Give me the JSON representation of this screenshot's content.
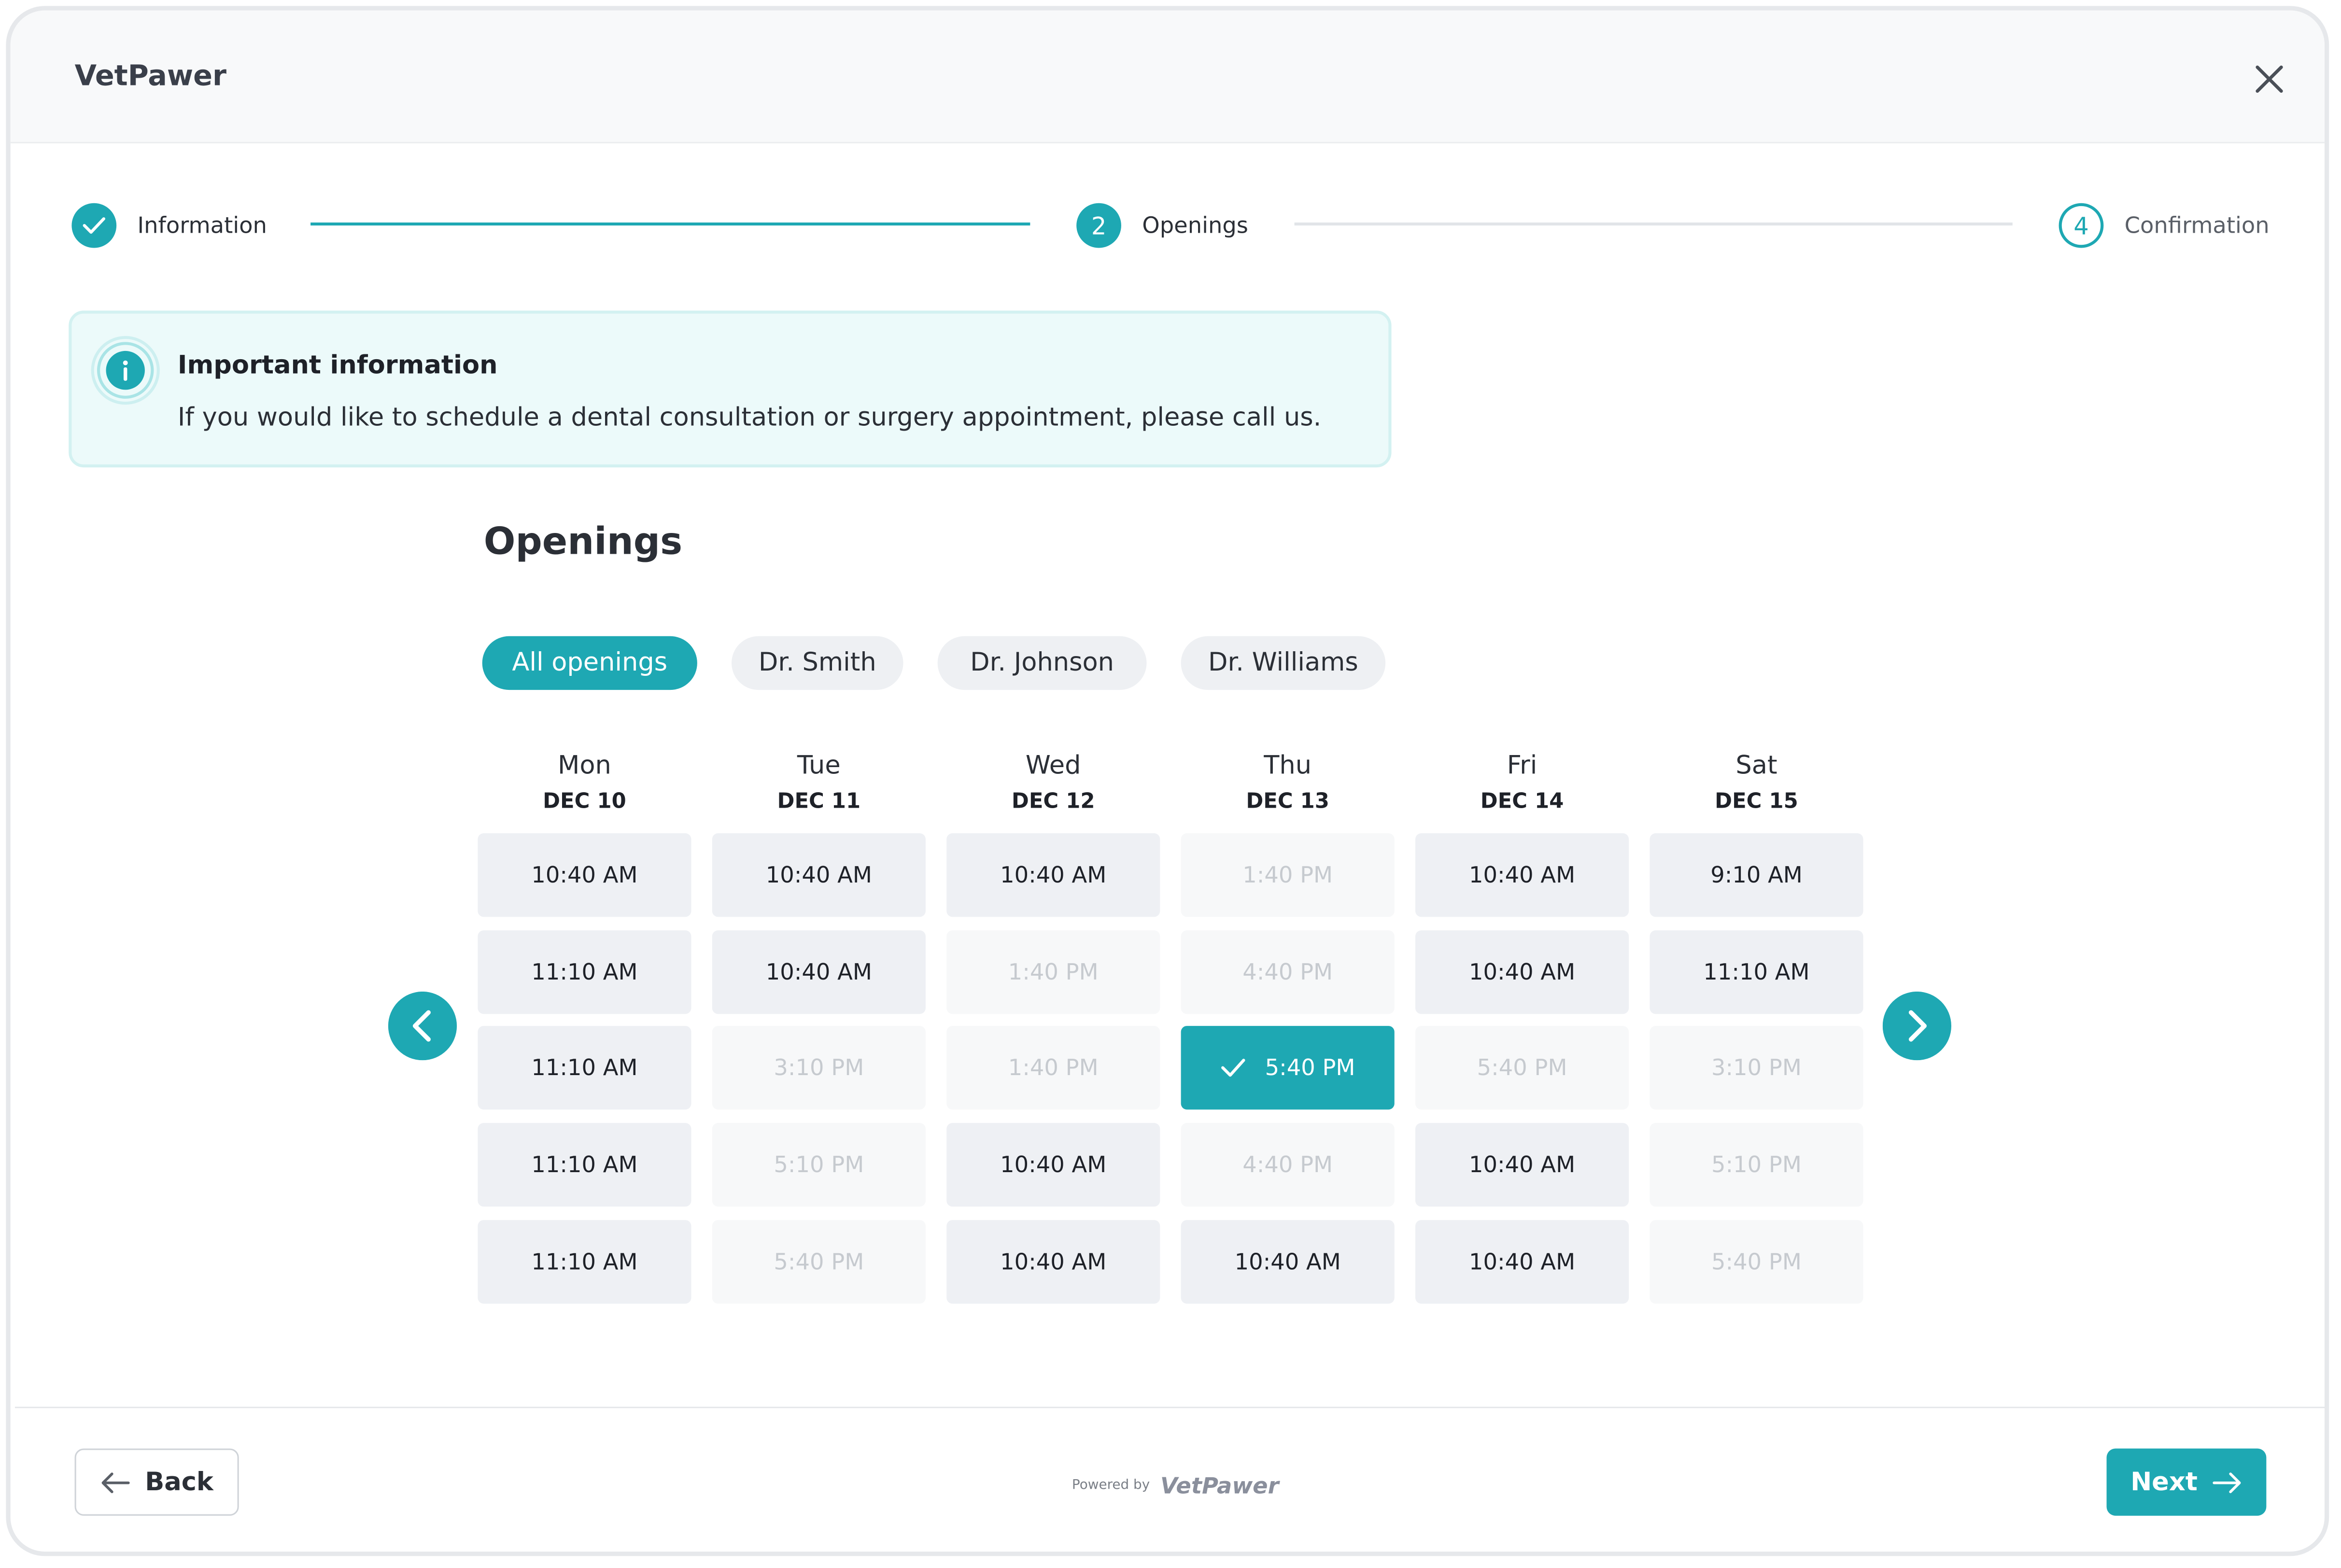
{
  "header": {
    "brand": "VetPawer"
  },
  "stepper": [
    {
      "label": "Information",
      "status": "done"
    },
    {
      "number": "2",
      "label": "Openings",
      "status": "current"
    },
    {
      "number": "4",
      "label": "Confirmation",
      "status": "upcoming"
    }
  ],
  "notice": {
    "title": "Important information",
    "text": "If you would like to schedule a dental consultation or surgery appointment, please call us."
  },
  "openings": {
    "title": "Openings",
    "filters": [
      {
        "label": "All openings",
        "active": true
      },
      {
        "label": "Dr. Smith",
        "active": false
      },
      {
        "label": "Dr. Johnson",
        "active": false
      },
      {
        "label": "Dr. Williams",
        "active": false
      }
    ],
    "days": [
      {
        "day": "Mon",
        "date": "DEC 10",
        "slots": [
          {
            "time": "10:40 AM",
            "available": true
          },
          {
            "time": "11:10 AM",
            "available": true
          },
          {
            "time": "11:10 AM",
            "available": true
          },
          {
            "time": "11:10 AM",
            "available": true
          },
          {
            "time": "11:10 AM",
            "available": true
          }
        ]
      },
      {
        "day": "Tue",
        "date": "DEC 11",
        "slots": [
          {
            "time": "10:40 AM",
            "available": true
          },
          {
            "time": "10:40 AM",
            "available": true
          },
          {
            "time": "3:10 PM",
            "available": false
          },
          {
            "time": "5:10 PM",
            "available": false
          },
          {
            "time": "5:40 PM",
            "available": false
          }
        ]
      },
      {
        "day": "Wed",
        "date": "DEC 12",
        "slots": [
          {
            "time": "10:40 AM",
            "available": true
          },
          {
            "time": "1:40 PM",
            "available": false
          },
          {
            "time": "1:40 PM",
            "available": false
          },
          {
            "time": "10:40 AM",
            "available": true
          },
          {
            "time": "10:40 AM",
            "available": true
          }
        ]
      },
      {
        "day": "Thu",
        "date": "DEC 13",
        "slots": [
          {
            "time": "1:40 PM",
            "available": false
          },
          {
            "time": "4:40 PM",
            "available": false
          },
          {
            "time": "5:40 PM",
            "available": true,
            "selected": true
          },
          {
            "time": "4:40 PM",
            "available": false
          },
          {
            "time": "10:40 AM",
            "available": true
          }
        ]
      },
      {
        "day": "Fri",
        "date": "DEC 14",
        "slots": [
          {
            "time": "10:40 AM",
            "available": true
          },
          {
            "time": "10:40 AM",
            "available": true
          },
          {
            "time": "5:40 PM",
            "available": false
          },
          {
            "time": "10:40 AM",
            "available": true
          },
          {
            "time": "10:40 AM",
            "available": true
          }
        ]
      },
      {
        "day": "Sat",
        "date": "DEC 15",
        "slots": [
          {
            "time": "9:10 AM",
            "available": true
          },
          {
            "time": "11:10 AM",
            "available": true
          },
          {
            "time": "3:10 PM",
            "available": false
          },
          {
            "time": "5:10 PM",
            "available": false
          },
          {
            "time": "5:40 PM",
            "available": false
          }
        ]
      }
    ]
  },
  "footer": {
    "back": "Back",
    "powered_by": "Powered by",
    "powered_brand": "VetPawer",
    "next": "Next"
  }
}
